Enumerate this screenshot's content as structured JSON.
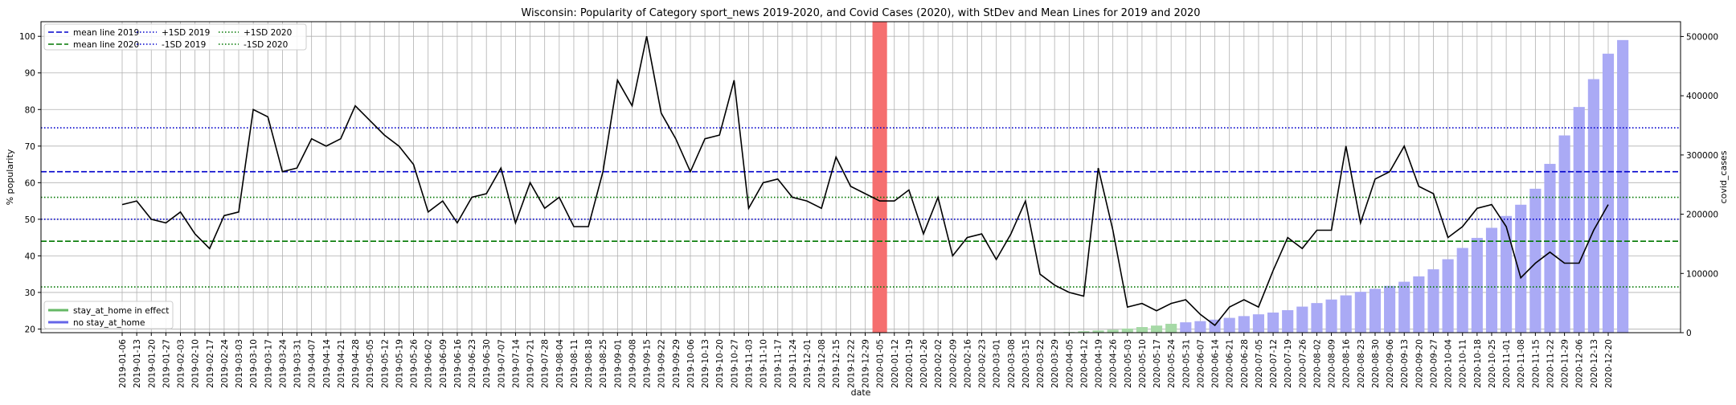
{
  "chart_data": {
    "type": "line",
    "title": "Wisconsin: Popularity of Category sport_news 2019-2020, and Covid Cases (2020), with StDev and Mean Lines for 2019 and 2020",
    "xlabel": "date",
    "ylabel": "% popularity",
    "y2label": "covid_cases",
    "ylim": [
      19,
      104
    ],
    "y2lim": [
      0,
      525000
    ],
    "yticks": [
      20,
      30,
      40,
      50,
      60,
      70,
      80,
      90,
      100
    ],
    "y2ticks": [
      0,
      100000,
      200000,
      300000,
      400000,
      500000
    ],
    "grid": true,
    "categories": [
      "2019-01-06",
      "2019-01-13",
      "2019-01-20",
      "2019-01-27",
      "2019-02-03",
      "2019-02-10",
      "2019-02-17",
      "2019-02-24",
      "2019-03-03",
      "2019-03-10",
      "2019-03-17",
      "2019-03-24",
      "2019-03-31",
      "2019-04-07",
      "2019-04-14",
      "2019-04-21",
      "2019-04-28",
      "2019-05-05",
      "2019-05-12",
      "2019-05-19",
      "2019-05-26",
      "2019-06-02",
      "2019-06-09",
      "2019-06-16",
      "2019-06-23",
      "2019-06-30",
      "2019-07-07",
      "2019-07-14",
      "2019-07-21",
      "2019-07-28",
      "2019-08-04",
      "2019-08-11",
      "2019-08-18",
      "2019-08-25",
      "2019-09-01",
      "2019-09-08",
      "2019-09-15",
      "2019-09-22",
      "2019-09-29",
      "2019-10-06",
      "2019-10-13",
      "2019-10-20",
      "2019-10-27",
      "2019-11-03",
      "2019-11-10",
      "2019-11-17",
      "2019-11-24",
      "2019-12-01",
      "2019-12-08",
      "2019-12-15",
      "2019-12-22",
      "2019-12-29",
      "2020-01-05",
      "2020-01-12",
      "2020-01-19",
      "2020-01-26",
      "2020-02-02",
      "2020-02-09",
      "2020-02-16",
      "2020-02-23",
      "2020-03-01",
      "2020-03-08",
      "2020-03-15",
      "2020-03-22",
      "2020-03-29",
      "2020-04-05",
      "2020-04-12",
      "2020-04-19",
      "2020-04-26",
      "2020-05-03",
      "2020-05-10",
      "2020-05-17",
      "2020-05-24",
      "2020-05-31",
      "2020-06-07",
      "2020-06-14",
      "2020-06-21",
      "2020-06-28",
      "2020-07-05",
      "2020-07-12",
      "2020-07-19",
      "2020-07-26",
      "2020-08-02",
      "2020-08-09",
      "2020-08-16",
      "2020-08-23",
      "2020-08-30",
      "2020-09-06",
      "2020-09-13",
      "2020-09-20",
      "2020-09-27",
      "2020-10-04",
      "2020-10-11",
      "2020-10-18",
      "2020-10-25",
      "2020-11-01",
      "2020-11-08",
      "2020-11-15",
      "2020-11-22",
      "2020-11-29",
      "2020-12-06",
      "2020-12-13",
      "2020-12-20"
    ],
    "xtick_labels": [
      "2019-01-06",
      "2019-01-13",
      "2019-01-20",
      "2019-01-27",
      "2019-02-03",
      "2019-02-10",
      "2019-02-17",
      "2019-02-24",
      "2019-03-03",
      "2019-03-10",
      "2019-03-17",
      "2019-03-24",
      "2019-03-31",
      "2019-04-07",
      "2019-04-14",
      "2019-04-21",
      "2019-04-28",
      "2019-05-05",
      "2019-05-12",
      "2019-05-19",
      "2019-05-26",
      "2019-06-02",
      "2019-06-09",
      "2019-06-16",
      "2019-06-23",
      "2019-06-30",
      "2019-07-07",
      "2019-07-14",
      "2019-07-21",
      "2019-07-28",
      "2019-08-04",
      "2019-08-11",
      "2019-08-18",
      "2019-08-25",
      "2019-09-01",
      "2019-09-08",
      "2019-09-15",
      "2019-09-22",
      "2019-09-29",
      "2019-10-06",
      "2019-10-13",
      "2019-10-20",
      "2019-10-27",
      "2019-11-03",
      "2019-11-10",
      "2019-11-17",
      "2019-11-24",
      "2019-12-01",
      "2019-12-08",
      "2019-12-15",
      "2019-12-22",
      "2019-12-29",
      "2020-01-05",
      "2020-01-12",
      "2020-01-19",
      "2020-01-26",
      "2020-02-02",
      "2020-02-09",
      "2020-02-16",
      "2020-02-23",
      "2020-03-01",
      "2020-03-08",
      "2020-03-15",
      "2020-03-22",
      "2020-03-29",
      "2020-04-05",
      "2020-04-12",
      "2020-04-19",
      "2020-04-26",
      "2020-05-03",
      "2020-05-10",
      "2020-05-17",
      "2020-05-24",
      "2020-05-31",
      "2020-06-07",
      "2020-06-14",
      "2020-06-21",
      "2020-06-28",
      "2020-07-05",
      "2020-07-12",
      "2020-07-19",
      "2020-07-26",
      "2020-08-02",
      "2020-08-09",
      "2020-08-16",
      "2020-08-23",
      "2020-08-30",
      "2020-09-06",
      "2020-09-13",
      "2020-09-20",
      "2020-09-27",
      "2020-10-04",
      "2020-10-11",
      "2020-10-18",
      "2020-10-25",
      "2020-11-01",
      "2020-11-08",
      "2020-11-15",
      "2020-11-22",
      "2020-11-29",
      "2020-12-06",
      "2020-12-13",
      "2020-12-20"
    ],
    "popularity": [
      54,
      55,
      50,
      49,
      52,
      46,
      42,
      51,
      52,
      80,
      78,
      63,
      64,
      72,
      70,
      72,
      81,
      77,
      73,
      70,
      65,
      52,
      55,
      49,
      56,
      57,
      64,
      49,
      60,
      53,
      56,
      48,
      48,
      63,
      88,
      81,
      100,
      79,
      72,
      63,
      72,
      73,
      88,
      53,
      60,
      61,
      56,
      55,
      53,
      67,
      59,
      57,
      55,
      55,
      58,
      46,
      56,
      40,
      45,
      46,
      39,
      46,
      55,
      35,
      32,
      30,
      29,
      64,
      47,
      26,
      27,
      25,
      27,
      28,
      24,
      21,
      26,
      28,
      26,
      36,
      45,
      42,
      47,
      47,
      70,
      49,
      61,
      63,
      70,
      59,
      57,
      45,
      48,
      53,
      54,
      48,
      34,
      38,
      41,
      38,
      38,
      47,
      54
    ],
    "covid_cases": [
      null,
      null,
      null,
      null,
      null,
      null,
      null,
      null,
      null,
      null,
      null,
      null,
      null,
      null,
      null,
      null,
      null,
      null,
      null,
      null,
      null,
      null,
      null,
      null,
      null,
      null,
      null,
      null,
      null,
      null,
      null,
      null,
      null,
      null,
      null,
      null,
      null,
      null,
      null,
      null,
      null,
      null,
      null,
      null,
      null,
      null,
      null,
      null,
      null,
      null,
      null,
      null,
      null,
      null,
      null,
      null,
      null,
      null,
      null,
      null,
      null,
      null,
      null,
      null,
      100,
      1200,
      2500,
      3800,
      5000,
      7000,
      9500,
      12000,
      15000,
      17500,
      19500,
      22000,
      25000,
      28000,
      31000,
      34000,
      38000,
      44000,
      50000,
      56000,
      63000,
      69000,
      74000,
      79000,
      86000,
      95000,
      107000,
      124000,
      143000,
      160000,
      177000,
      197000,
      216000,
      243000,
      285000,
      333000,
      381000,
      428000,
      471000,
      494000
    ],
    "stay_at_home_bars": [
      64,
      65,
      66,
      67,
      68,
      69,
      70,
      71,
      72
    ],
    "red_band_index": 52,
    "hlines": [
      {
        "name": "mean line 2019",
        "value": 63,
        "color": "#0000cc",
        "style": "dashed"
      },
      {
        "name": "mean line 2020",
        "value": 44,
        "color": "#007700",
        "style": "dashed"
      },
      {
        "name": "+1SD 2019",
        "value": 75,
        "color": "#0000cc",
        "style": "dotted"
      },
      {
        "name": "-1SD 2019",
        "value": 50,
        "color": "#0000cc",
        "style": "dotted"
      },
      {
        "name": "+1SD 2020",
        "value": 56,
        "color": "#007700",
        "style": "dotted"
      },
      {
        "name": "-1SD 2020",
        "value": 31.5,
        "color": "#007700",
        "style": "dotted"
      }
    ],
    "colors": {
      "line": "#000000",
      "covid_bar": "#aaaaf5",
      "stay_home_bar": "#a6d9a6",
      "red_band": "#f56f6f",
      "grid": "#b0b0b0"
    },
    "legend_top": {
      "placement": "top-left",
      "entries": [
        "mean line 2019",
        "mean line 2020",
        "+1SD 2019",
        "-1SD 2019",
        "+1SD 2020",
        "-1SD 2020"
      ]
    },
    "legend_bottom": {
      "placement": "bottom-left",
      "entries": [
        {
          "label": "stay_at_home in effect",
          "color": "#66b866"
        },
        {
          "label": "no stay_at_home",
          "color": "#6666e8"
        }
      ]
    }
  }
}
